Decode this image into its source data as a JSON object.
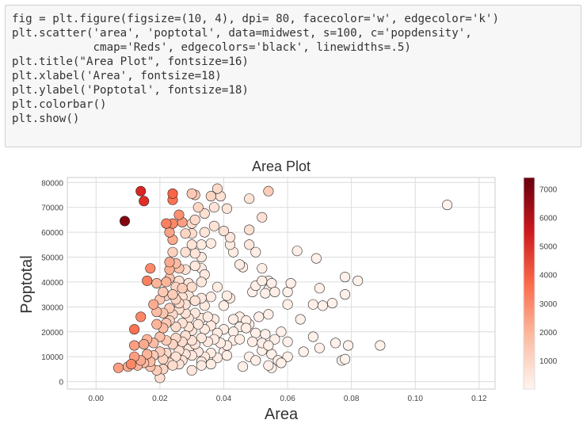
{
  "code_lines": [
    "fig = plt.figure(figsize=(10, 4), dpi= 80, facecolor='w', edgecolor='k')",
    "plt.scatter('area', 'poptotal', data=midwest, s=100, c='popdensity',",
    "            cmap='Reds', edgecolors='black', linewidths=.5)",
    "plt.title(\"Area Plot\", fontsize=16)",
    "plt.xlabel('Area', fontsize=18)",
    "plt.ylabel('Poptotal', fontsize=18)",
    "plt.colorbar()",
    "plt.show()"
  ],
  "colors": {
    "code_bg": "#f7f7f7",
    "grid": "#e0e0e0",
    "marker_edge": "#000000",
    "cmap_low": "#fff5f0",
    "cmap_mid": "#fb6a4a",
    "cmap_high": "#67000d"
  },
  "chart_data": {
    "type": "scatter",
    "title": "Area Plot",
    "xlabel": "Area",
    "ylabel": "Poptotal",
    "xlim": [
      -0.009,
      0.125
    ],
    "ylim": [
      -3000,
      82000
    ],
    "xticks": [
      0.0,
      0.02,
      0.04,
      0.06,
      0.08,
      0.1,
      0.12
    ],
    "xtick_labels": [
      "0.00",
      "0.02",
      "0.04",
      "0.06",
      "0.08",
      "0.10",
      "0.12"
    ],
    "yticks": [
      0,
      10000,
      20000,
      30000,
      40000,
      50000,
      60000,
      70000,
      80000
    ],
    "ytick_labels": [
      "0",
      "10000",
      "20000",
      "30000",
      "40000",
      "50000",
      "60000",
      "70000",
      "80000"
    ],
    "colorbar": {
      "cmap": "Reds",
      "lim": [
        0,
        7400
      ],
      "ticks": [
        1000,
        2000,
        3000,
        4000,
        5000,
        6000,
        7000
      ],
      "tick_labels": [
        "1000",
        "2000",
        "3000",
        "4000",
        "5000",
        "6000",
        "7000"
      ]
    },
    "grid": true,
    "points": [
      [
        0.009,
        64500,
        7000
      ],
      [
        0.014,
        76500,
        5200
      ],
      [
        0.015,
        72500,
        5000
      ],
      [
        0.024,
        75500,
        3800
      ],
      [
        0.024,
        73000,
        3500
      ],
      [
        0.022,
        63500,
        3200
      ],
      [
        0.024,
        63500,
        3000
      ],
      [
        0.026,
        67000,
        2800
      ],
      [
        0.027,
        64000,
        2500
      ],
      [
        0.023,
        60000,
        2400
      ],
      [
        0.024,
        57000,
        2200
      ],
      [
        0.03,
        75500,
        1500
      ],
      [
        0.031,
        75000,
        1400
      ],
      [
        0.032,
        70000,
        1200
      ],
      [
        0.036,
        74500,
        1200
      ],
      [
        0.038,
        77500,
        1100
      ],
      [
        0.039,
        74500,
        900
      ],
      [
        0.037,
        70000,
        800
      ],
      [
        0.041,
        69500,
        700
      ],
      [
        0.034,
        67500,
        900
      ],
      [
        0.031,
        65000,
        1100
      ],
      [
        0.03,
        63500,
        1000
      ],
      [
        0.028,
        59500,
        1200
      ],
      [
        0.03,
        59500,
        1000
      ],
      [
        0.034,
        60000,
        700
      ],
      [
        0.037,
        62500,
        800
      ],
      [
        0.04,
        60500,
        900
      ],
      [
        0.042,
        58000,
        600
      ],
      [
        0.048,
        73500,
        800
      ],
      [
        0.054,
        76500,
        1400
      ],
      [
        0.052,
        66000,
        900
      ],
      [
        0.048,
        61000,
        900
      ],
      [
        0.048,
        55000,
        600
      ],
      [
        0.03,
        55000,
        800
      ],
      [
        0.033,
        55000,
        500
      ],
      [
        0.036,
        55500,
        500
      ],
      [
        0.042,
        55000,
        500
      ],
      [
        0.043,
        52000,
        400
      ],
      [
        0.05,
        52000,
        300
      ],
      [
        0.024,
        52000,
        1300
      ],
      [
        0.028,
        52000,
        900
      ],
      [
        0.031,
        51500,
        700
      ],
      [
        0.033,
        50000,
        600
      ],
      [
        0.023,
        48000,
        2200
      ],
      [
        0.025,
        47500,
        1800
      ],
      [
        0.026,
        45500,
        1600
      ],
      [
        0.023,
        45000,
        2100
      ],
      [
        0.028,
        45000,
        800
      ],
      [
        0.031,
        46500,
        600
      ],
      [
        0.033,
        45500,
        500
      ],
      [
        0.045,
        47000,
        400
      ],
      [
        0.046,
        46000,
        300
      ],
      [
        0.052,
        45500,
        300
      ],
      [
        0.063,
        52500,
        300
      ],
      [
        0.069,
        49500,
        200
      ],
      [
        0.017,
        45500,
        3000
      ],
      [
        0.016,
        40500,
        3200
      ],
      [
        0.019,
        39500,
        2000
      ],
      [
        0.022,
        40000,
        2000
      ],
      [
        0.023,
        41500,
        1700
      ],
      [
        0.025,
        38000,
        1200
      ],
      [
        0.026,
        40500,
        900
      ],
      [
        0.027,
        37500,
        1400
      ],
      [
        0.029,
        39500,
        700
      ],
      [
        0.03,
        38000,
        1000
      ],
      [
        0.033,
        40000,
        600
      ],
      [
        0.034,
        43000,
        500
      ],
      [
        0.038,
        38000,
        400
      ],
      [
        0.05,
        38500,
        300
      ],
      [
        0.052,
        40500,
        300
      ],
      [
        0.054,
        40500,
        250
      ],
      [
        0.055,
        39500,
        300
      ],
      [
        0.054,
        37000,
        250
      ],
      [
        0.049,
        36000,
        200
      ],
      [
        0.053,
        35500,
        250
      ],
      [
        0.056,
        36000,
        300
      ],
      [
        0.061,
        39500,
        250
      ],
      [
        0.06,
        36000,
        200
      ],
      [
        0.07,
        37500,
        200
      ],
      [
        0.078,
        42000,
        200
      ],
      [
        0.082,
        40500,
        200
      ],
      [
        0.11,
        71000,
        150
      ],
      [
        0.018,
        31000,
        2200
      ],
      [
        0.02,
        33000,
        1500
      ],
      [
        0.021,
        36000,
        1500
      ],
      [
        0.022,
        34500,
        1300
      ],
      [
        0.024,
        35000,
        1400
      ],
      [
        0.025,
        33000,
        1200
      ],
      [
        0.026,
        31500,
        1000
      ],
      [
        0.027,
        34000,
        800
      ],
      [
        0.028,
        31000,
        900
      ],
      [
        0.029,
        34500,
        700
      ],
      [
        0.031,
        32500,
        800
      ],
      [
        0.033,
        33500,
        600
      ],
      [
        0.034,
        30500,
        500
      ],
      [
        0.036,
        34000,
        400
      ],
      [
        0.041,
        34500,
        400
      ],
      [
        0.042,
        33500,
        350
      ],
      [
        0.04,
        30500,
        300
      ],
      [
        0.06,
        31000,
        250
      ],
      [
        0.068,
        31000,
        250
      ],
      [
        0.071,
        30500,
        200
      ],
      [
        0.074,
        31500,
        200
      ],
      [
        0.078,
        35000,
        200
      ],
      [
        0.019,
        28000,
        1800
      ],
      [
        0.021,
        27500,
        1600
      ],
      [
        0.023,
        29500,
        1400
      ],
      [
        0.024,
        27000,
        1100
      ],
      [
        0.026,
        29000,
        900
      ],
      [
        0.028,
        27500,
        800
      ],
      [
        0.029,
        25500,
        700
      ],
      [
        0.031,
        27500,
        600
      ],
      [
        0.033,
        25500,
        500
      ],
      [
        0.035,
        26000,
        500
      ],
      [
        0.037,
        25000,
        400
      ],
      [
        0.043,
        25000,
        350
      ],
      [
        0.045,
        26000,
        300
      ],
      [
        0.047,
        24500,
        300
      ],
      [
        0.045,
        22000,
        300
      ],
      [
        0.048,
        23000,
        250
      ],
      [
        0.051,
        26000,
        250
      ],
      [
        0.054,
        27000,
        250
      ],
      [
        0.064,
        25000,
        200
      ],
      [
        0.012,
        21000,
        3500
      ],
      [
        0.014,
        26000,
        3000
      ],
      [
        0.019,
        23000,
        2000
      ],
      [
        0.021,
        21500,
        1800
      ],
      [
        0.022,
        23500,
        1500
      ],
      [
        0.023,
        24500,
        1200
      ],
      [
        0.025,
        22000,
        1000
      ],
      [
        0.027,
        23500,
        900
      ],
      [
        0.029,
        22000,
        700
      ],
      [
        0.03,
        20500,
        600
      ],
      [
        0.032,
        23000,
        600
      ],
      [
        0.034,
        21000,
        500
      ],
      [
        0.036,
        22500,
        450
      ],
      [
        0.038,
        19500,
        400
      ],
      [
        0.04,
        21000,
        350
      ],
      [
        0.043,
        20000,
        300
      ],
      [
        0.047,
        21500,
        300
      ],
      [
        0.05,
        19500,
        250
      ],
      [
        0.053,
        19000,
        250
      ],
      [
        0.058,
        20000,
        200
      ],
      [
        0.012,
        14500,
        2500
      ],
      [
        0.015,
        15000,
        2200
      ],
      [
        0.016,
        17000,
        2000
      ],
      [
        0.018,
        15500,
        1800
      ],
      [
        0.02,
        18000,
        1700
      ],
      [
        0.022,
        16500,
        1500
      ],
      [
        0.024,
        15000,
        1200
      ],
      [
        0.025,
        17500,
        1100
      ],
      [
        0.027,
        16000,
        1000
      ],
      [
        0.028,
        18500,
        900
      ],
      [
        0.03,
        16500,
        800
      ],
      [
        0.031,
        15000,
        700
      ],
      [
        0.033,
        17500,
        600
      ],
      [
        0.035,
        16000,
        500
      ],
      [
        0.037,
        17000,
        450
      ],
      [
        0.039,
        15500,
        400
      ],
      [
        0.041,
        14500,
        350
      ],
      [
        0.043,
        16500,
        300
      ],
      [
        0.045,
        17000,
        300
      ],
      [
        0.049,
        16000,
        300
      ],
      [
        0.052,
        15500,
        250
      ],
      [
        0.054,
        14500,
        250
      ],
      [
        0.056,
        17000,
        200
      ],
      [
        0.06,
        16000,
        200
      ],
      [
        0.068,
        18000,
        200
      ],
      [
        0.07,
        13500,
        200
      ],
      [
        0.075,
        15500,
        150
      ],
      [
        0.079,
        14500,
        150
      ],
      [
        0.089,
        14500,
        150
      ],
      [
        0.011,
        7000,
        3000
      ],
      [
        0.012,
        10000,
        2500
      ],
      [
        0.014,
        8500,
        2200
      ],
      [
        0.016,
        11000,
        2000
      ],
      [
        0.017,
        8000,
        1800
      ],
      [
        0.018,
        10500,
        1500
      ],
      [
        0.02,
        12000,
        1400
      ],
      [
        0.021,
        9000,
        1200
      ],
      [
        0.022,
        11500,
        1100
      ],
      [
        0.023,
        7500,
        1000
      ],
      [
        0.025,
        10000,
        900
      ],
      [
        0.026,
        12500,
        800
      ],
      [
        0.027,
        8500,
        800
      ],
      [
        0.028,
        11000,
        700
      ],
      [
        0.029,
        13000,
        600
      ],
      [
        0.03,
        10500,
        600
      ],
      [
        0.032,
        12000,
        500
      ],
      [
        0.033,
        8000,
        500
      ],
      [
        0.034,
        10000,
        450
      ],
      [
        0.036,
        11500,
        400
      ],
      [
        0.038,
        9500,
        350
      ],
      [
        0.04,
        12000,
        300
      ],
      [
        0.041,
        10500,
        300
      ],
      [
        0.048,
        10000,
        250
      ],
      [
        0.05,
        8500,
        250
      ],
      [
        0.052,
        12500,
        200
      ],
      [
        0.055,
        11000,
        200
      ],
      [
        0.057,
        8500,
        200
      ],
      [
        0.06,
        10000,
        200
      ],
      [
        0.065,
        12000,
        150
      ],
      [
        0.077,
        8500,
        150
      ],
      [
        0.078,
        9000,
        150
      ],
      [
        0.007,
        5500,
        2500
      ],
      [
        0.01,
        6000,
        2200
      ],
      [
        0.013,
        6500,
        2000
      ],
      [
        0.015,
        7500,
        1800
      ],
      [
        0.017,
        6000,
        1600
      ],
      [
        0.019,
        4500,
        1400
      ],
      [
        0.02,
        1500,
        1000
      ],
      [
        0.021,
        5000,
        1200
      ],
      [
        0.024,
        6500,
        1000
      ],
      [
        0.026,
        7000,
        800
      ],
      [
        0.03,
        4500,
        600
      ],
      [
        0.033,
        6500,
        500
      ],
      [
        0.036,
        7000,
        400
      ],
      [
        0.046,
        6000,
        300
      ],
      [
        0.054,
        6500,
        250
      ],
      [
        0.055,
        5500,
        200
      ],
      [
        0.058,
        7500,
        200
      ]
    ]
  }
}
